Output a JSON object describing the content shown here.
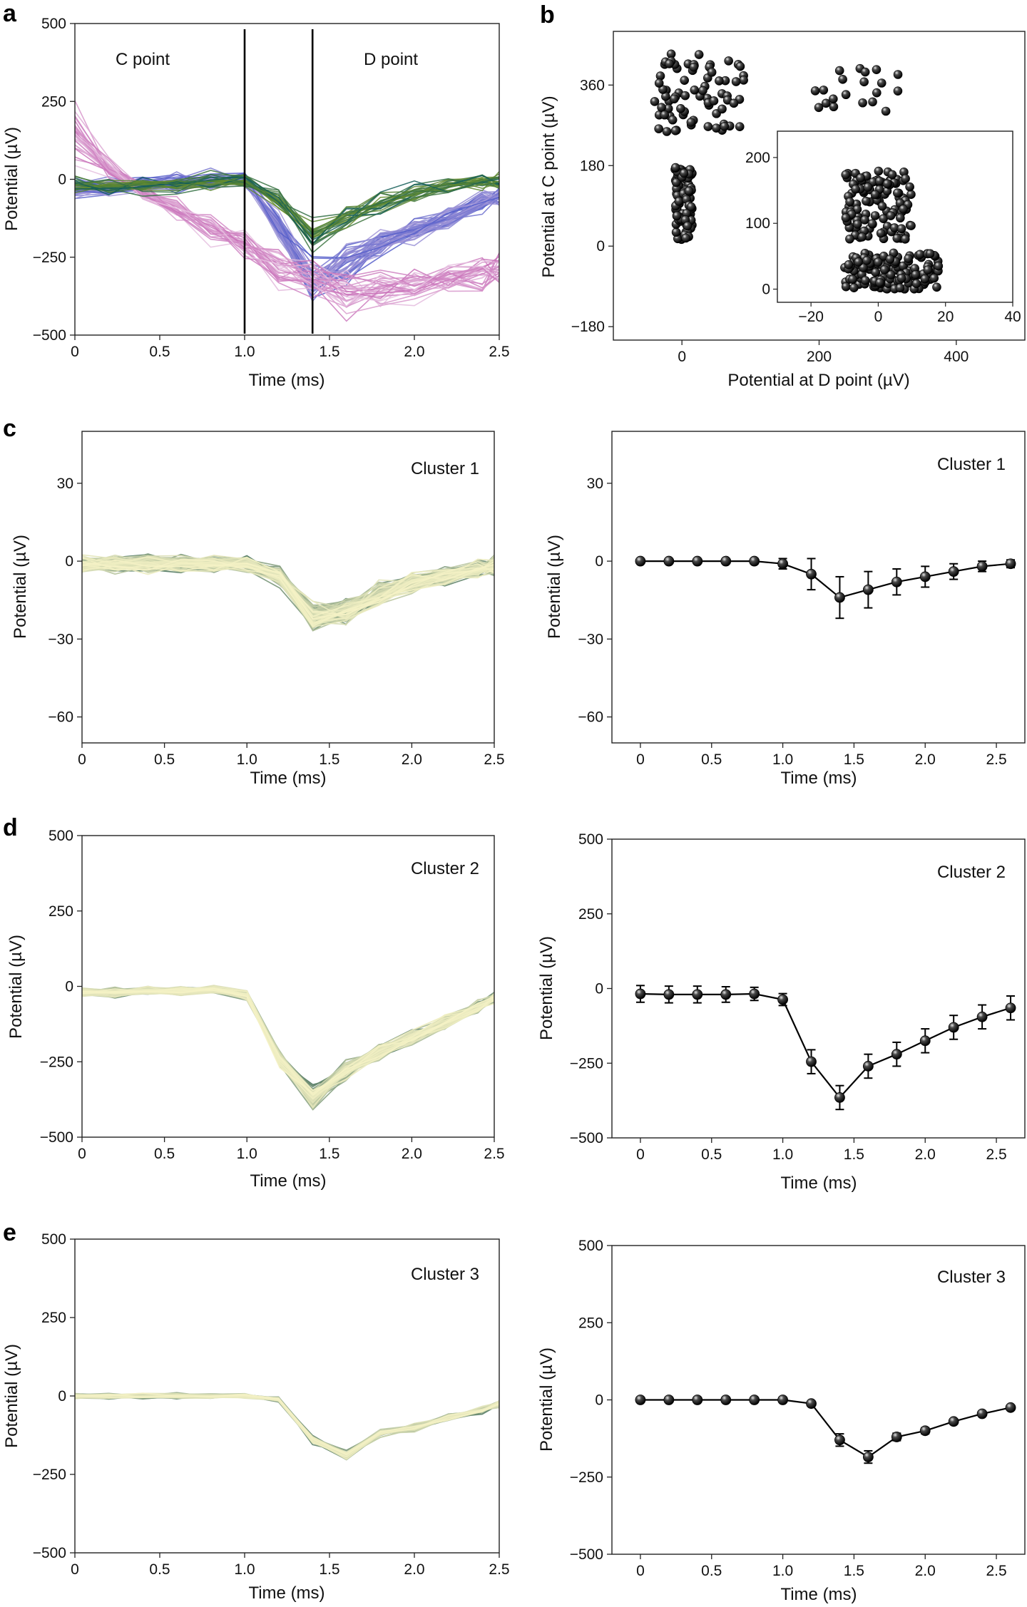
{
  "panel_letters": [
    "a",
    "b",
    "c",
    "d",
    "e"
  ],
  "chart_data": [
    {
      "panel": "a",
      "type": "line",
      "xlabel": "Time (ms)",
      "ylabel": "Potential (µV)",
      "xlim": [
        0,
        2.5
      ],
      "ylim": [
        -500,
        500
      ],
      "xticks": [
        "0",
        "0.5",
        "1.0",
        "1.5",
        "2.0",
        "2.5"
      ],
      "yticks": [
        "−500",
        "−250",
        "0",
        "250",
        "500"
      ],
      "annotations": [
        "C point",
        "D point"
      ],
      "vertical_lines_x": [
        1.0,
        1.4
      ],
      "x": [
        0,
        0.2,
        0.4,
        0.6,
        0.8,
        1.0,
        1.2,
        1.4,
        1.6,
        1.8,
        2.0,
        2.2,
        2.4,
        2.5
      ],
      "series_groups": [
        {
          "color": "#6a6fd0",
          "count": 40,
          "mean": [
            -30,
            -25,
            -20,
            -10,
            -5,
            0,
            -150,
            -330,
            -270,
            -210,
            -160,
            -120,
            -70,
            -60
          ]
        },
        {
          "color": "#d98fc6",
          "count": 30,
          "mean": [
            150,
            40,
            -40,
            -100,
            -150,
            -200,
            -280,
            -330,
            -360,
            -355,
            -340,
            -320,
            -300,
            -290
          ]
        },
        {
          "color": "#1a6b6b",
          "count": 25,
          "mean": [
            -20,
            -25,
            -20,
            -15,
            -10,
            -5,
            -60,
            -180,
            -130,
            -80,
            -40,
            -20,
            -10,
            -5
          ]
        }
      ]
    },
    {
      "panel": "b",
      "type": "scatter",
      "xlabel": "Potential at D point (µV)",
      "ylabel": "Potential at C point (µV)",
      "xlim": [
        -100,
        500
      ],
      "ylim": [
        -210,
        480
      ],
      "xticks": [
        "0",
        "200",
        "400"
      ],
      "yticks": [
        "−180",
        "0",
        "180",
        "360"
      ],
      "points_summary": [
        {
          "cluster": "upper-left",
          "x_range": [
            -40,
            95
          ],
          "y_range": [
            255,
            430
          ],
          "count": 75
        },
        {
          "cluster": "upper-right",
          "x_range": [
            190,
            330
          ],
          "y_range": [
            300,
            400
          ],
          "count": 20
        },
        {
          "cluster": "left-column",
          "x_range": [
            -10,
            15
          ],
          "y_range": [
            5,
            180
          ],
          "count": 90
        }
      ],
      "inset": {
        "xlim": [
          -30,
          40
        ],
        "ylim": [
          -20,
          240
        ],
        "xticks": [
          "−20",
          "0",
          "20",
          "40"
        ],
        "yticks": [
          "0",
          "100",
          "200"
        ],
        "points_summary": [
          {
            "x_range": [
              -10,
              10
            ],
            "y_range": [
              75,
              180
            ],
            "count": 120
          },
          {
            "x_range": [
              -10,
              18
            ],
            "y_range": [
              0,
              55
            ],
            "count": 140
          }
        ]
      }
    },
    {
      "panel": "c",
      "type": "line",
      "annotation": "Cluster 1",
      "xlabel": "Time (ms)",
      "ylabel": "Potential (µV)",
      "xlim": [
        0,
        2.5
      ],
      "ylim": [
        -70,
        50
      ],
      "xticks": [
        "0",
        "0.5",
        "1.0",
        "1.5",
        "2.0",
        "2.5"
      ],
      "yticks": [
        "−60",
        "−30",
        "0",
        "30"
      ],
      "x": [
        0,
        0.2,
        0.4,
        0.6,
        0.8,
        1.0,
        1.2,
        1.4,
        1.6,
        1.8,
        2.0,
        2.2,
        2.4,
        2.5
      ],
      "mean": [
        -1,
        -1,
        -1,
        -1,
        -1,
        -1,
        -6,
        -22,
        -19,
        -13,
        -8,
        -6,
        -3,
        -2
      ],
      "count": 120
    },
    {
      "panel": "c-right",
      "type": "line",
      "annotation": "Cluster 1",
      "xlabel": "Time (ms)",
      "ylabel": "Potential (µV)",
      "xlim": [
        -0.2,
        2.7
      ],
      "ylim": [
        -70,
        50
      ],
      "xticks": [
        "0",
        "0.5",
        "1.0",
        "1.5",
        "2.0",
        "2.5"
      ],
      "yticks": [
        "−60",
        "−30",
        "0",
        "30"
      ],
      "x": [
        0,
        0.2,
        0.4,
        0.6,
        0.8,
        1.0,
        1.2,
        1.4,
        1.6,
        1.8,
        2.0,
        2.2,
        2.4,
        2.6
      ],
      "y": [
        0,
        0,
        0,
        0,
        0,
        -1,
        -5,
        -14,
        -11,
        -8,
        -6,
        -4,
        -2,
        -1
      ],
      "err": [
        0.5,
        0.5,
        0.5,
        0.5,
        1,
        2,
        6,
        8,
        7,
        5,
        4,
        3,
        2,
        1.5
      ]
    },
    {
      "panel": "d",
      "type": "line",
      "annotation": "Cluster 2",
      "xlabel": "Time (ms)",
      "ylabel": "Potential (µV)",
      "xlim": [
        0,
        2.5
      ],
      "ylim": [
        -500,
        500
      ],
      "xticks": [
        "0",
        "0.5",
        "1.0",
        "1.5",
        "2.0",
        "2.5"
      ],
      "yticks": [
        "−500",
        "−250",
        "0",
        "250",
        "500"
      ],
      "x": [
        0,
        0.2,
        0.4,
        0.6,
        0.8,
        1.0,
        1.2,
        1.4,
        1.6,
        1.8,
        2.0,
        2.2,
        2.4,
        2.5
      ],
      "mean": [
        -20,
        -20,
        -15,
        -15,
        -10,
        -30,
        -240,
        -370,
        -280,
        -220,
        -170,
        -120,
        -70,
        -40
      ],
      "count": 100
    },
    {
      "panel": "d-right",
      "type": "line",
      "annotation": "Cluster 2",
      "xlabel": "Time (ms)",
      "ylabel": "Potential (µV)",
      "xlim": [
        -0.2,
        2.7
      ],
      "ylim": [
        -500,
        500
      ],
      "xticks": [
        "0",
        "0.5",
        "1.0",
        "1.5",
        "2.0",
        "2.5"
      ],
      "yticks": [
        "−500",
        "−250",
        "0",
        "250",
        "500"
      ],
      "x": [
        0,
        0.2,
        0.4,
        0.6,
        0.8,
        1.0,
        1.2,
        1.4,
        1.6,
        1.8,
        2.0,
        2.2,
        2.4,
        2.6
      ],
      "y": [
        -18,
        -20,
        -20,
        -20,
        -18,
        -37,
        -245,
        -365,
        -260,
        -220,
        -175,
        -130,
        -95,
        -65
      ],
      "err": [
        28,
        28,
        28,
        26,
        22,
        20,
        40,
        40,
        40,
        40,
        40,
        40,
        40,
        40
      ]
    },
    {
      "panel": "e",
      "type": "line",
      "annotation": "Cluster 3",
      "xlabel": "Time (ms)",
      "ylabel": "Potential (µV)",
      "xlim": [
        0,
        2.5
      ],
      "ylim": [
        -500,
        500
      ],
      "xticks": [
        "0",
        "0.5",
        "1.0",
        "1.5",
        "2.0",
        "2.5"
      ],
      "yticks": [
        "−500",
        "−250",
        "0",
        "250",
        "500"
      ],
      "x": [
        0,
        0.2,
        0.4,
        0.6,
        0.8,
        1.0,
        1.2,
        1.4,
        1.6,
        1.8,
        2.0,
        2.2,
        2.4,
        2.5
      ],
      "mean": [
        0,
        0,
        0,
        0,
        0,
        0,
        -10,
        -140,
        -190,
        -120,
        -100,
        -70,
        -45,
        -25
      ],
      "count": 60
    },
    {
      "panel": "e-right",
      "type": "line",
      "annotation": "Cluster 3",
      "xlabel": "Time (ms)",
      "ylabel": "Potential (µV)",
      "xlim": [
        -0.2,
        2.7
      ],
      "ylim": [
        -500,
        500
      ],
      "xticks": [
        "0",
        "0.5",
        "1.0",
        "1.5",
        "2.0",
        "2.5"
      ],
      "yticks": [
        "−500",
        "−250",
        "0",
        "250",
        "500"
      ],
      "x": [
        0,
        0.2,
        0.4,
        0.6,
        0.8,
        1.0,
        1.2,
        1.4,
        1.6,
        1.8,
        2.0,
        2.2,
        2.4,
        2.6
      ],
      "y": [
        0,
        0,
        0,
        0,
        0,
        0,
        -12,
        -130,
        -185,
        -120,
        -100,
        -70,
        -45,
        -25
      ],
      "err": [
        3,
        3,
        3,
        3,
        3,
        3,
        5,
        20,
        20,
        12,
        10,
        8,
        6,
        5
      ]
    }
  ]
}
